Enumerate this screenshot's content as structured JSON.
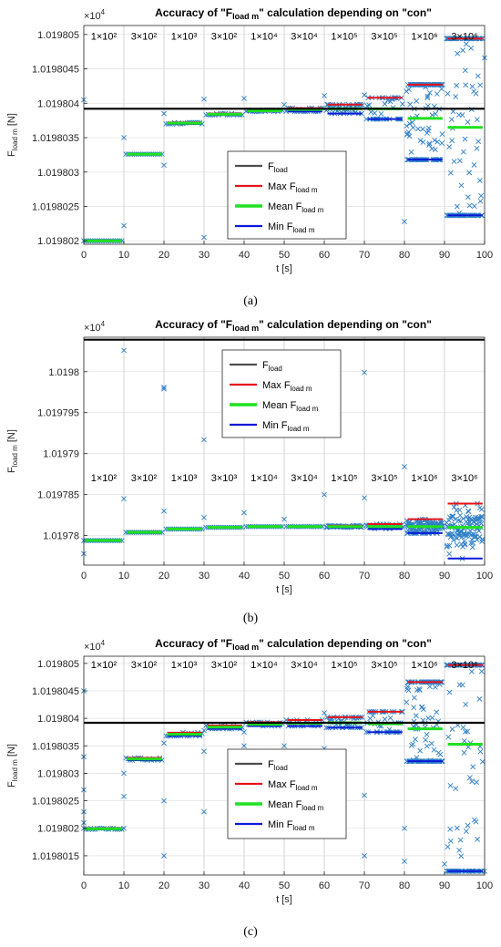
{
  "chart_data": [
    {
      "type": "scatter",
      "caption": "(a)",
      "title_prefix": "Accuracy of \"F",
      "title_sub": "load m",
      "title_suffix": "\" calculation depending on \"con\"",
      "xlabel": "t [s]",
      "ylabel_main": "F",
      "ylabel_sub": "load m",
      "ylabel_unit": " [N]",
      "exponent_base": "×10",
      "exponent_power": "4",
      "xlim": [
        0,
        100
      ],
      "ylim": [
        1.01980195,
        1.01980513
      ],
      "xticks": [
        0,
        10,
        20,
        30,
        40,
        50,
        60,
        70,
        80,
        90,
        100
      ],
      "xtick_labels": [
        "0",
        "10",
        "20",
        "30",
        "40",
        "50",
        "60",
        "70",
        "80",
        "90",
        "100"
      ],
      "yticks": [
        1.019802,
        1.0198025,
        1.019803,
        1.0198035,
        1.019804,
        1.0198045,
        1.019805
      ],
      "ytick_labels": [
        "1.019802",
        "1.0198025",
        "1.019803",
        "1.0198035",
        "1.019804",
        "1.0198045",
        "1.019805"
      ],
      "grid": true,
      "con_labels": [
        "1×10²",
        "3×10²",
        "1×10³",
        "3×10²",
        "1×10⁴",
        "3×10⁴",
        "1×10⁵",
        "3×10⁵",
        "1×10⁶",
        "3×10⁶"
      ],
      "con_label_y": 1.01980498,
      "f_load": 1.01980392,
      "segments": [
        {
          "x0": 0,
          "x1": 9.5,
          "max": 1.019802,
          "mean": 1.019802,
          "min": 1.019802,
          "noise": 1e-07,
          "outliers": [
            [
              0,
              1.01980405
            ],
            [
              10,
              1.01980222
            ]
          ]
        },
        {
          "x0": 10.5,
          "x1": 19.5,
          "max": 1.01980326,
          "mean": 1.01980326,
          "min": 1.01980326,
          "noise": 1e-07,
          "outliers": [
            [
              10,
              1.0198035
            ],
            [
              20,
              1.0198031
            ]
          ]
        },
        {
          "x0": 20.5,
          "x1": 29.5,
          "max": 1.01980372,
          "mean": 1.01980371,
          "min": 1.0198037,
          "noise": 1e-07,
          "outliers": [
            [
              20,
              1.01980385
            ],
            [
              30,
              1.01980205
            ]
          ]
        },
        {
          "x0": 30.5,
          "x1": 39.5,
          "max": 1.01980385,
          "mean": 1.01980384,
          "min": 1.01980383,
          "noise": 1e-07,
          "outliers": [
            [
              30,
              1.01980406
            ],
            [
              40,
              1.01980407
            ]
          ]
        },
        {
          "x0": 40.5,
          "x1": 49.5,
          "max": 1.0198039,
          "mean": 1.01980389,
          "min": 1.01980388,
          "noise": 1e-07,
          "outliers": [
            [
              50,
              1.01980398
            ]
          ]
        },
        {
          "x0": 50.5,
          "x1": 59.5,
          "max": 1.01980393,
          "mean": 1.01980391,
          "min": 1.01980388,
          "noise": 2e-07,
          "outliers": [
            [
              60,
              1.01980411
            ]
          ]
        },
        {
          "x0": 60.5,
          "x1": 69.5,
          "max": 1.01980398,
          "mean": 1.01980392,
          "min": 1.01980385,
          "noise": 3e-07,
          "outliers": [
            [
              70,
              1.01980412
            ]
          ]
        },
        {
          "x0": 70.5,
          "x1": 79.5,
          "max": 1.01980408,
          "mean": 1.01980392,
          "min": 1.01980377,
          "noise": 7e-07,
          "outliers": [
            [
              80,
              1.01980228
            ]
          ]
        },
        {
          "x0": 80.5,
          "x1": 89.5,
          "max": 1.01980427,
          "mean": 1.01980378,
          "min": 1.01980318,
          "noise": 2.2e-06,
          "outliers": []
        },
        {
          "x0": 90.5,
          "x1": 99.5,
          "max": 1.01980494,
          "mean": 1.01980365,
          "min": 1.01980237,
          "noise": 6e-06,
          "outliers": [
            [
              100,
              1.01980466
            ]
          ]
        }
      ],
      "legend": {
        "items": [
          "F",
          "Max F",
          "Mean F",
          "Min F"
        ],
        "subs": [
          "load",
          "load m",
          "load m",
          "load m"
        ]
      }
    },
    {
      "type": "scatter",
      "caption": "(b)",
      "title_prefix": "Accuracy of \"F",
      "title_sub": "load m",
      "title_suffix": "\" calculation depending on \"con\"",
      "xlabel": "t [s]",
      "ylabel_main": "F",
      "ylabel_sub": "load m",
      "ylabel_unit": " [N]",
      "exponent_base": "×10",
      "exponent_power": "4",
      "xlim": [
        0,
        100
      ],
      "ylim": [
        1.0197764,
        1.0198042
      ],
      "xticks": [
        0,
        10,
        20,
        30,
        40,
        50,
        60,
        70,
        80,
        90,
        100
      ],
      "xtick_labels": [
        "0",
        "10",
        "20",
        "30",
        "40",
        "50",
        "60",
        "70",
        "80",
        "90",
        "100"
      ],
      "yticks": [
        1.01978,
        1.019785,
        1.01979,
        1.019795,
        1.0198
      ],
      "ytick_labels": [
        "1.01978",
        "1.019785",
        "1.01979",
        "1.019795",
        "1.0198"
      ],
      "grid": true,
      "con_labels": [
        "1×10²",
        "3×10²",
        "1×10³",
        "3×10³",
        "1×10⁴",
        "3×10⁴",
        "1×10⁵",
        "3×10⁵",
        "1×10⁶",
        "3×10⁶"
      ],
      "con_label_y": 1.0197871,
      "f_load": 1.0198039,
      "segments": [
        {
          "x0": 0,
          "x1": 9.5,
          "max": 1.0197794,
          "mean": 1.0197794,
          "min": 1.0197794,
          "noise": 1e-07,
          "outliers": [
            [
              0,
              1.0197778
            ],
            [
              10,
              1.0197845
            ]
          ]
        },
        {
          "x0": 10.5,
          "x1": 19.5,
          "max": 1.0197804,
          "mean": 1.0197804,
          "min": 1.0197804,
          "noise": 1e-07,
          "outliers": [
            [
              10,
              1.0198026
            ],
            [
              20,
              1.019783
            ]
          ]
        },
        {
          "x0": 20.5,
          "x1": 29.5,
          "max": 1.0197808,
          "mean": 1.0197808,
          "min": 1.0197808,
          "noise": 1e-07,
          "outliers": [
            [
              20,
              1.0197981
            ],
            [
              20,
              1.0197979
            ],
            [
              30,
              1.0197917
            ]
          ]
        },
        {
          "x0": 30.5,
          "x1": 39.5,
          "max": 1.019781,
          "mean": 1.019781,
          "min": 1.019781,
          "noise": 1e-07,
          "outliers": [
            [
              30,
              1.0197822
            ],
            [
              40,
              1.0197828
            ]
          ]
        },
        {
          "x0": 40.5,
          "x1": 49.5,
          "max": 1.0197811,
          "mean": 1.0197811,
          "min": 1.0197811,
          "noise": 1e-07,
          "outliers": [
            [
              50,
              1.019782
            ]
          ]
        },
        {
          "x0": 50.5,
          "x1": 59.5,
          "max": 1.01978112,
          "mean": 1.0197811,
          "min": 1.01978108,
          "noise": 1e-07,
          "outliers": [
            [
              60,
              1.019785
            ]
          ]
        },
        {
          "x0": 60.5,
          "x1": 69.5,
          "max": 1.0197812,
          "mean": 1.0197811,
          "min": 1.019781,
          "noise": 2e-07,
          "outliers": [
            [
              70,
              1.0197999
            ],
            [
              70,
              1.0197846
            ]
          ]
        },
        {
          "x0": 70.5,
          "x1": 79.5,
          "max": 1.0197814,
          "mean": 1.0197811,
          "min": 1.0197808,
          "noise": 4e-07,
          "outliers": [
            [
              80,
              1.0197884
            ]
          ]
        },
        {
          "x0": 80.5,
          "x1": 89.5,
          "max": 1.019782,
          "mean": 1.0197811,
          "min": 1.0197803,
          "noise": 1e-06,
          "outliers": []
        },
        {
          "x0": 90.5,
          "x1": 99.5,
          "max": 1.0197839,
          "mean": 1.019781,
          "min": 1.0197772,
          "noise": 2.5e-06,
          "outliers": []
        }
      ],
      "legend": {
        "items": [
          "F",
          "Max F",
          "Mean F",
          "Min F"
        ],
        "subs": [
          "load",
          "load m",
          "load m",
          "load m"
        ]
      }
    },
    {
      "type": "scatter",
      "caption": "(c)",
      "title_prefix": "Accuracy of \"F",
      "title_sub": "load m",
      "title_suffix": "\" calculation depending on \"con\"",
      "xlabel": "t [s]",
      "ylabel_main": "F",
      "ylabel_sub": "load m",
      "ylabel_unit": " [N]",
      "exponent_base": "×10",
      "exponent_power": "4",
      "xlim": [
        0,
        100
      ],
      "ylim": [
        1.01980115,
        1.01980513
      ],
      "xticks": [
        0,
        10,
        20,
        30,
        40,
        50,
        60,
        70,
        80,
        90,
        100
      ],
      "xtick_labels": [
        "0",
        "10",
        "20",
        "30",
        "40",
        "50",
        "60",
        "70",
        "80",
        "90",
        "100"
      ],
      "yticks": [
        1.0198015,
        1.019802,
        1.0198025,
        1.019803,
        1.0198035,
        1.019804,
        1.0198045,
        1.019805
      ],
      "ytick_labels": [
        "1.0198015",
        "1.019802",
        "1.0198025",
        "1.019803",
        "1.0198035",
        "1.019804",
        "1.0198045",
        "1.019805"
      ],
      "grid": true,
      "con_labels": [
        "1×10²",
        "3×10²",
        "1×10³",
        "3×10²",
        "1×10⁴",
        "3×10⁴",
        "1×10⁵",
        "3×10⁵",
        "1×10⁶",
        "3×10⁶"
      ],
      "con_label_y": 1.01980498,
      "f_load": 1.01980392,
      "segments": [
        {
          "x0": 0,
          "x1": 9.5,
          "max": 1.019802,
          "mean": 1.01980199,
          "min": 1.01980198,
          "noise": 1e-07,
          "outliers": [
            [
              0,
              1.0198045
            ],
            [
              0,
              1.0198033
            ],
            [
              0,
              1.0198027
            ],
            [
              0,
              1.0198023
            ],
            [
              0,
              1.0198021
            ],
            [
              10,
              1.01980258
            ],
            [
              10,
              1.019802
            ]
          ]
        },
        {
          "x0": 10.5,
          "x1": 19.5,
          "max": 1.01980328,
          "mean": 1.01980326,
          "min": 1.01980324,
          "noise": 1e-07,
          "outliers": [
            [
              10,
              1.019803
            ],
            [
              20,
              1.0198025
            ],
            [
              20,
              1.0198015
            ]
          ]
        },
        {
          "x0": 20.5,
          "x1": 29.5,
          "max": 1.01980374,
          "mean": 1.01980371,
          "min": 1.01980368,
          "noise": 1e-07,
          "outliers": [
            [
              20,
              1.01980355
            ],
            [
              30,
              1.0198023
            ],
            [
              30,
              1.0198034
            ]
          ]
        },
        {
          "x0": 30.5,
          "x1": 39.5,
          "max": 1.01980387,
          "mean": 1.01980384,
          "min": 1.01980381,
          "noise": 1e-07,
          "outliers": [
            [
              30,
              1.01980378
            ],
            [
              40,
              1.0198035
            ]
          ]
        },
        {
          "x0": 40.5,
          "x1": 49.5,
          "max": 1.01980393,
          "mean": 1.01980389,
          "min": 1.01980386,
          "noise": 1e-07,
          "outliers": [
            [
              40,
              1.01980375
            ],
            [
              50,
              1.0198035
            ]
          ]
        },
        {
          "x0": 50.5,
          "x1": 59.5,
          "max": 1.01980397,
          "mean": 1.01980391,
          "min": 1.01980386,
          "noise": 2e-07,
          "outliers": [
            [
              50,
              1.0198034
            ],
            [
              60,
              1.01980345
            ]
          ]
        },
        {
          "x0": 60.5,
          "x1": 69.5,
          "max": 1.01980402,
          "mean": 1.01980392,
          "min": 1.01980383,
          "noise": 3e-07,
          "outliers": [
            [
              60,
              1.0198041
            ],
            [
              70,
              1.0198015
            ]
          ]
        },
        {
          "x0": 70.5,
          "x1": 79.5,
          "max": 1.01980412,
          "mean": 1.0198039,
          "min": 1.01980375,
          "noise": 8e-07,
          "outliers": [
            [
              70,
              1.0198026
            ],
            [
              80,
              1.0198014
            ]
          ]
        },
        {
          "x0": 80.5,
          "x1": 89.5,
          "max": 1.01980466,
          "mean": 1.01980381,
          "min": 1.01980322,
          "noise": 3e-06,
          "outliers": [
            [
              80,
              1.019802
            ]
          ]
        },
        {
          "x0": 90.5,
          "x1": 99.5,
          "max": 1.01980497,
          "mean": 1.01980353,
          "min": 1.01980122,
          "noise": 8e-06,
          "outliers": [
            [
              90,
              1.01980135
            ],
            [
              100,
              1.01980122
            ]
          ]
        }
      ],
      "legend": {
        "items": [
          "F",
          "Max F",
          "Mean F",
          "Min F"
        ],
        "subs": [
          "load",
          "load m",
          "load m",
          "load m"
        ]
      }
    }
  ],
  "colors": {
    "scatter": "#2e7fc6",
    "f_load": "#000000",
    "legend_f_load": "#4d4d4d",
    "max": "#e6121a",
    "mean": "#20e020",
    "min": "#0a1ad8",
    "grid": "#e3e3e3",
    "axis": "#262626"
  }
}
